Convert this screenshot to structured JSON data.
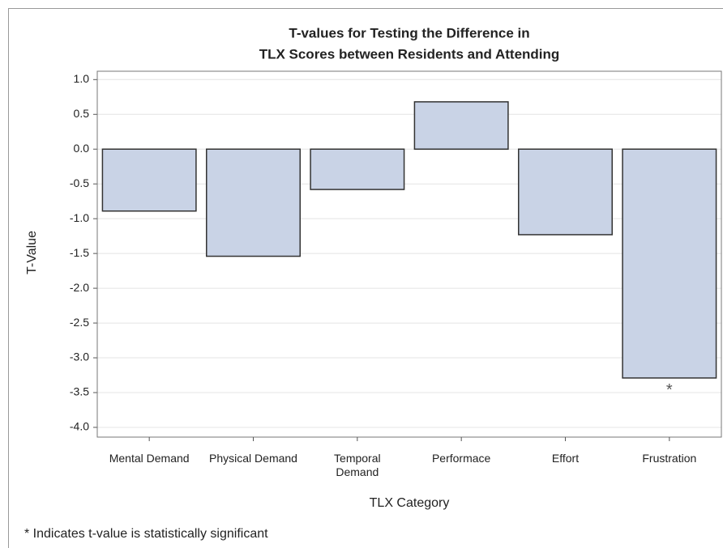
{
  "chart_data": {
    "type": "bar",
    "title": [
      "T-values for Testing the Difference in",
      "TLX Scores between Residents and Attending"
    ],
    "x_label": "TLX Category",
    "y_label": "T-Value",
    "categories": [
      "Mental Demand",
      "Physical Demand",
      "Temporal Demand",
      "Performace",
      "Effort",
      "Frustration"
    ],
    "values": [
      -0.89,
      -1.54,
      -0.58,
      0.68,
      -1.23,
      -3.29
    ],
    "color": "#c9d3e6",
    "ylim": [
      -4.14,
      1.12
    ],
    "yticks": [
      {
        "value": 1,
        "label": "1.0"
      },
      {
        "value": 0.5,
        "label": "0.5"
      },
      {
        "value": 0,
        "label": "0.0"
      },
      {
        "value": -0.5,
        "label": "-0.5"
      },
      {
        "value": -1,
        "label": "-1.0"
      },
      {
        "value": -1.5,
        "label": "-1.5"
      },
      {
        "value": -2,
        "label": "-2.0"
      },
      {
        "value": -2.5,
        "label": "-2.5"
      },
      {
        "value": -3,
        "label": "-3.0"
      },
      {
        "value": -3.5,
        "label": "-3.5"
      },
      {
        "value": -4,
        "label": "-4.0"
      }
    ],
    "grid": true,
    "annotation": {
      "text": "*",
      "category": "Frustration"
    },
    "footnote": "* Indicates t-value is statistically significant"
  }
}
